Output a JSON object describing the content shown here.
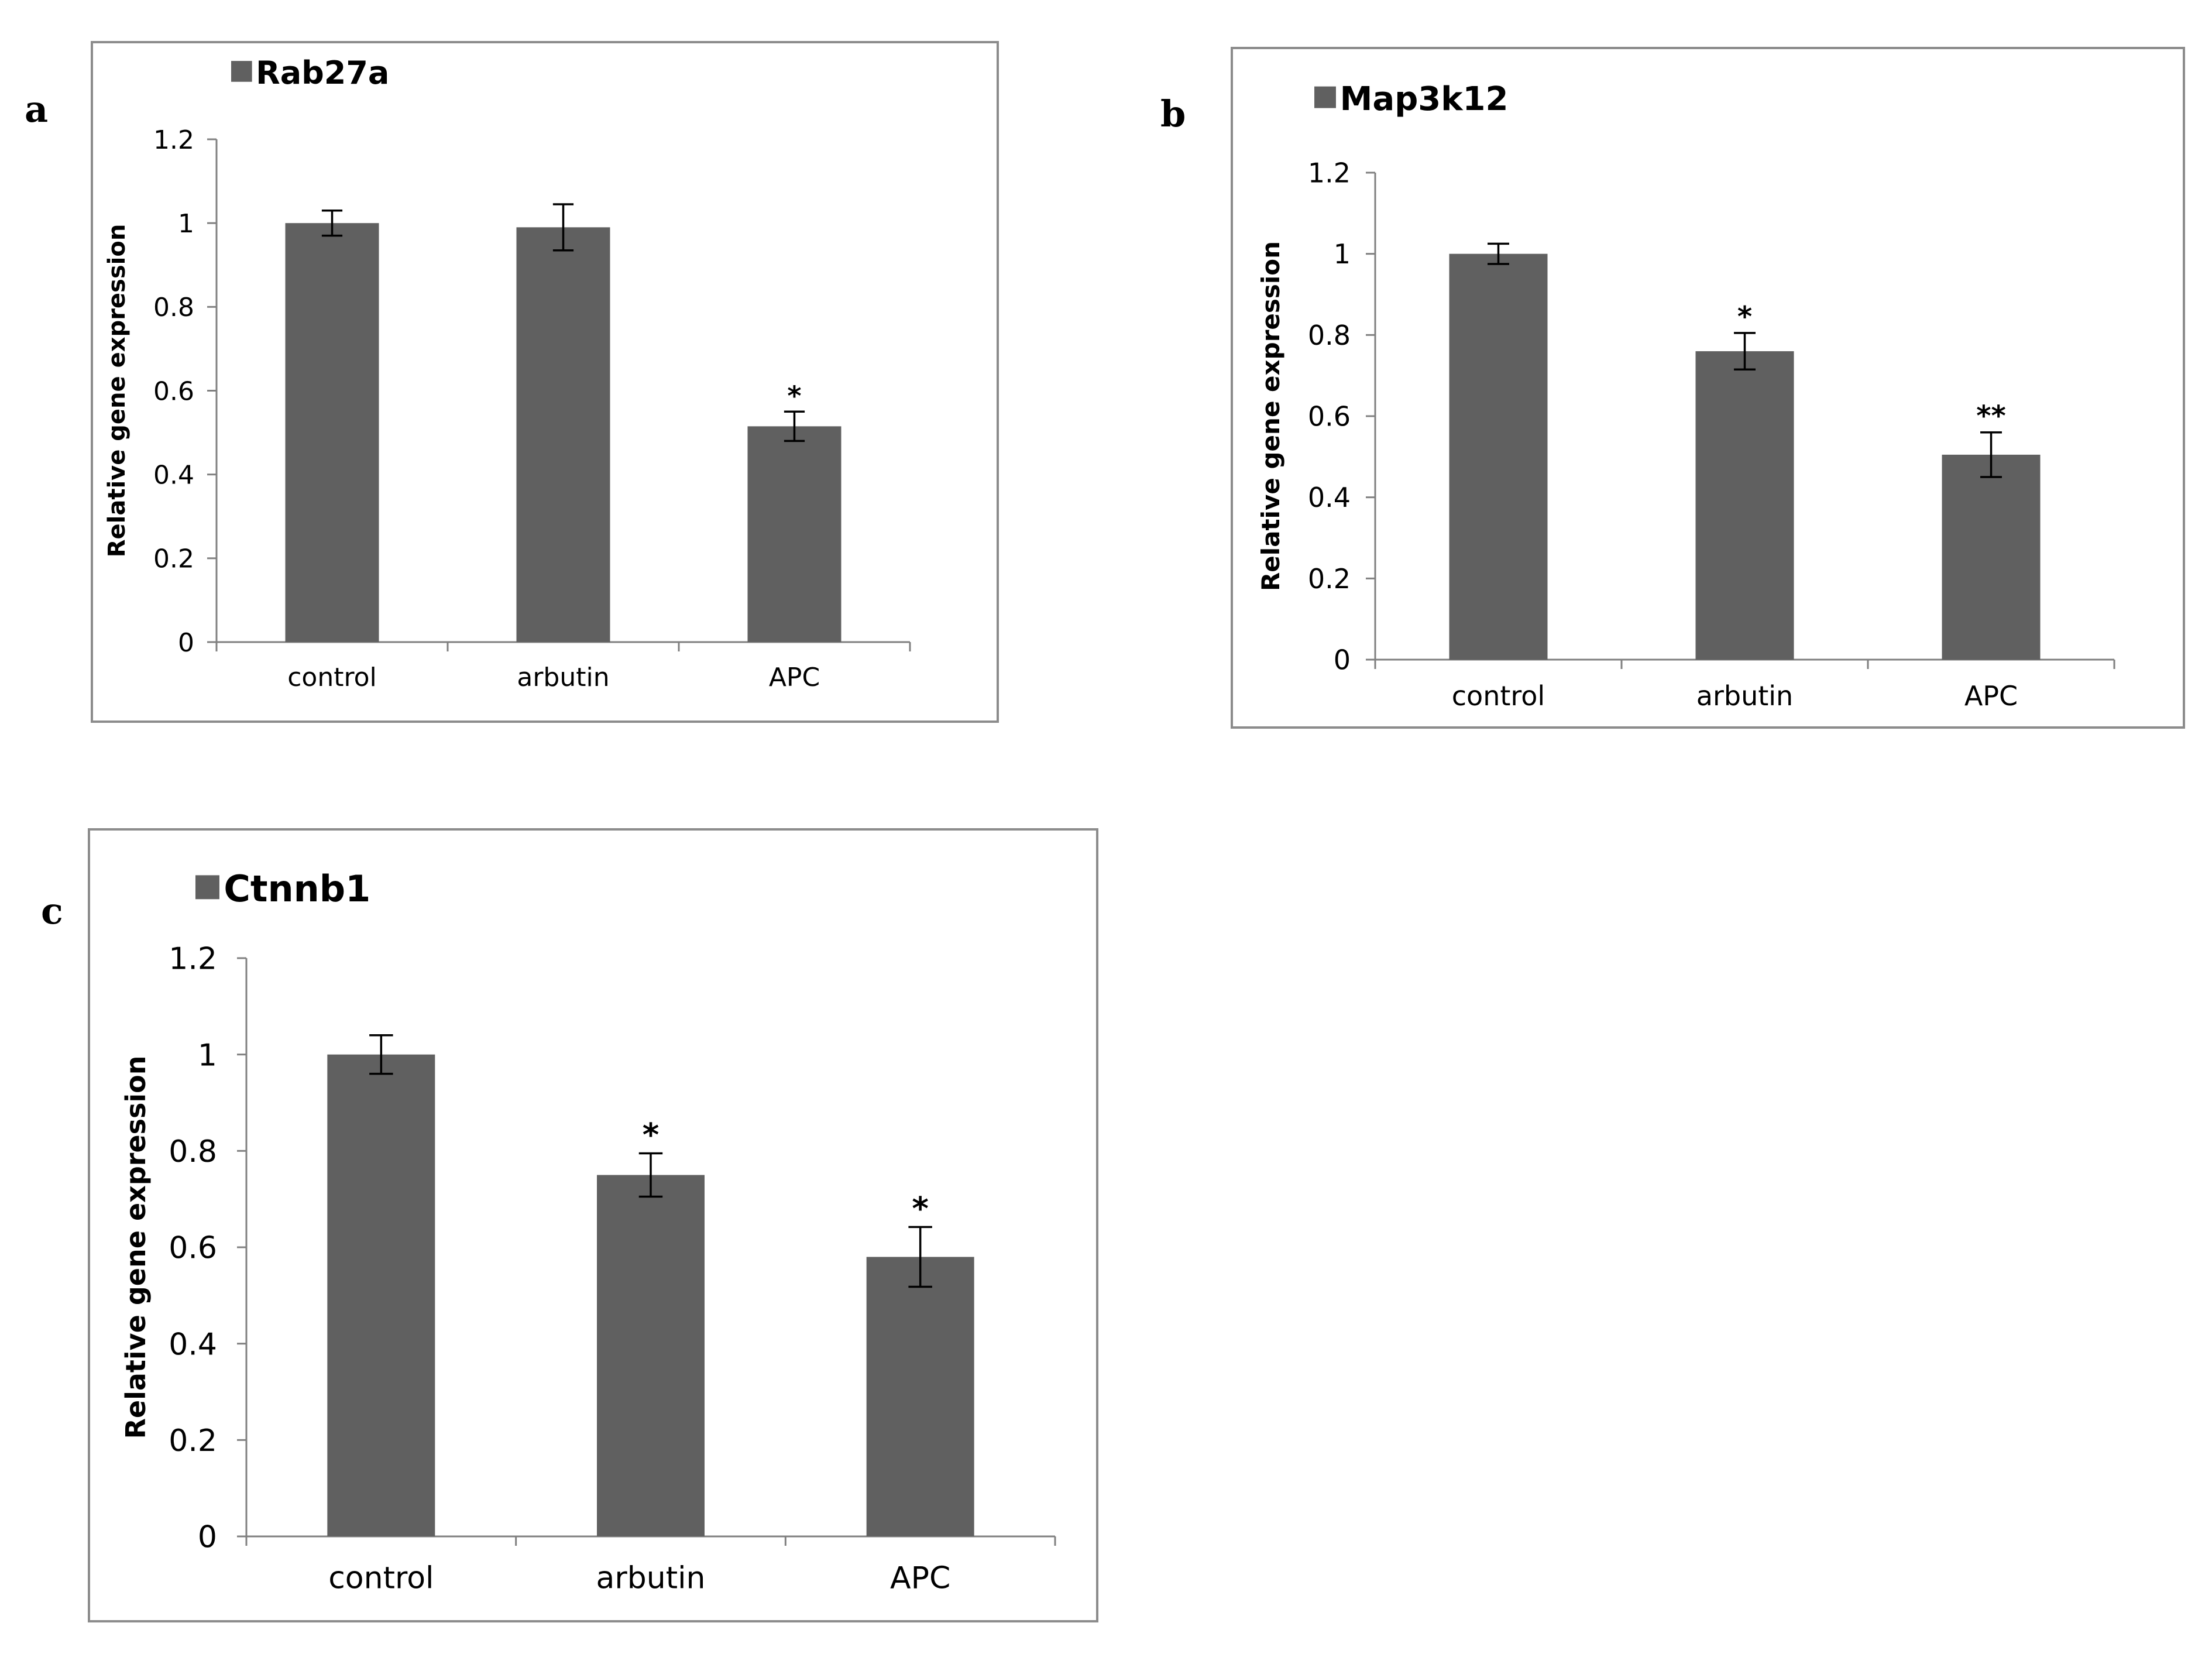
{
  "figure": {
    "panel_labels": [
      "a",
      "b",
      "c"
    ]
  },
  "chart_data": [
    {
      "type": "bar",
      "title": "Rab27a",
      "legend": "Rab27a",
      "categories": [
        "control",
        "arbutin",
        "APC"
      ],
      "values": [
        1.0,
        0.99,
        0.515
      ],
      "errors": [
        0.03,
        0.055,
        0.035
      ],
      "significance": [
        "",
        "",
        "*"
      ],
      "xlabel": "",
      "ylabel": "Relative gene expression",
      "ylim": [
        0,
        1.2
      ],
      "yticks": [
        0,
        0.2,
        0.4,
        0.6,
        0.8,
        1,
        1.2
      ],
      "ytick_labels": [
        "0",
        "0.2",
        "0.4",
        "0.6",
        "0.8",
        "1",
        "1.2"
      ],
      "grid": false,
      "bar_color": "#606060"
    },
    {
      "type": "bar",
      "title": "Map3k12",
      "legend": "Map3k12",
      "categories": [
        "control",
        "arbutin",
        "APC"
      ],
      "values": [
        1.0,
        0.76,
        0.505
      ],
      "errors": [
        0.025,
        0.045,
        0.055
      ],
      "significance": [
        "",
        "*",
        "**"
      ],
      "xlabel": "",
      "ylabel": "Relative gene expression",
      "ylim": [
        0,
        1.2
      ],
      "yticks": [
        0,
        0.2,
        0.4,
        0.6,
        0.8,
        1,
        1.2
      ],
      "ytick_labels": [
        "0",
        "0.2",
        "0.4",
        "0.6",
        "0.8",
        "1",
        "1.2"
      ],
      "grid": false,
      "bar_color": "#606060"
    },
    {
      "type": "bar",
      "title": "Ctnnb1",
      "legend": "Ctnnb1",
      "categories": [
        "control",
        "arbutin",
        "APC"
      ],
      "values": [
        1.0,
        0.75,
        0.58
      ],
      "errors": [
        0.04,
        0.045,
        0.062
      ],
      "significance": [
        "",
        "*",
        "*"
      ],
      "xlabel": "",
      "ylabel": "Relative gene expression",
      "ylim": [
        0,
        1.2
      ],
      "yticks": [
        0,
        0.2,
        0.4,
        0.6,
        0.8,
        1,
        1.2
      ],
      "ytick_labels": [
        "0",
        "0.2",
        "0.4",
        "0.6",
        "0.8",
        "1",
        "1.2"
      ],
      "grid": false,
      "bar_color": "#606060"
    }
  ]
}
